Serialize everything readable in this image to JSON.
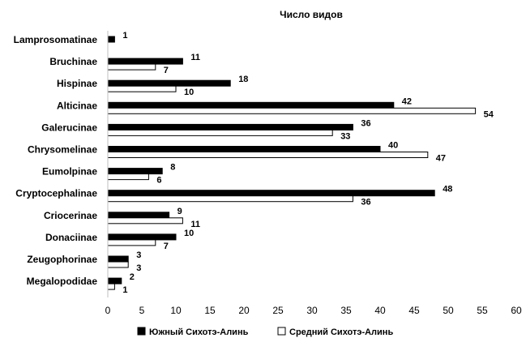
{
  "chart_data": {
    "type": "bar",
    "orientation": "horizontal",
    "title": "Число видов",
    "xlabel": "",
    "ylabel": "",
    "xlim": [
      0,
      60
    ],
    "x_ticks": [
      0,
      5,
      10,
      15,
      20,
      25,
      30,
      35,
      40,
      45,
      50,
      55,
      60
    ],
    "grid": false,
    "legend_position": "bottom",
    "categories": [
      "Lamprosomatinae",
      "Bruchinae",
      "Hispinae",
      "Alticinae",
      "Galerucinae",
      "Chrysomelinae",
      "Eumolpinae",
      "Cryptocephalinae",
      "Criocerinae",
      "Donaciinae",
      "Zeugophorinae",
      "Megalopodidae"
    ],
    "series": [
      {
        "name": "Южный Сихотэ-Алинь",
        "fill": "#000000",
        "values": [
          1,
          11,
          18,
          42,
          36,
          40,
          8,
          48,
          9,
          10,
          3,
          2
        ]
      },
      {
        "name": "Средний Сихотэ-Алинь",
        "fill": "#ffffff",
        "values": [
          null,
          7,
          10,
          54,
          33,
          47,
          6,
          36,
          11,
          7,
          3,
          1
        ]
      }
    ]
  }
}
